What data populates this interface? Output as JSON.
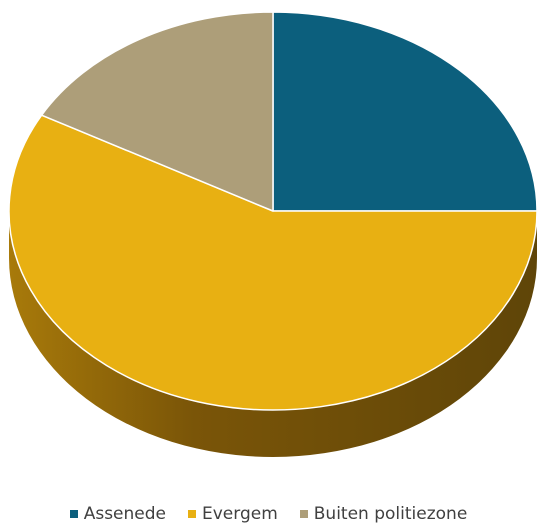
{
  "chart_data": {
    "type": "pie",
    "style": "3d",
    "legend_position": "bottom",
    "series": [
      {
        "name": "Assenede",
        "value": 25,
        "color": "#0c5f7d"
      },
      {
        "name": "Evergem",
        "value": 58,
        "color": "#e8b012"
      },
      {
        "name": "Buiten politiezone",
        "value": 17,
        "color": "#ad9e79"
      }
    ]
  }
}
